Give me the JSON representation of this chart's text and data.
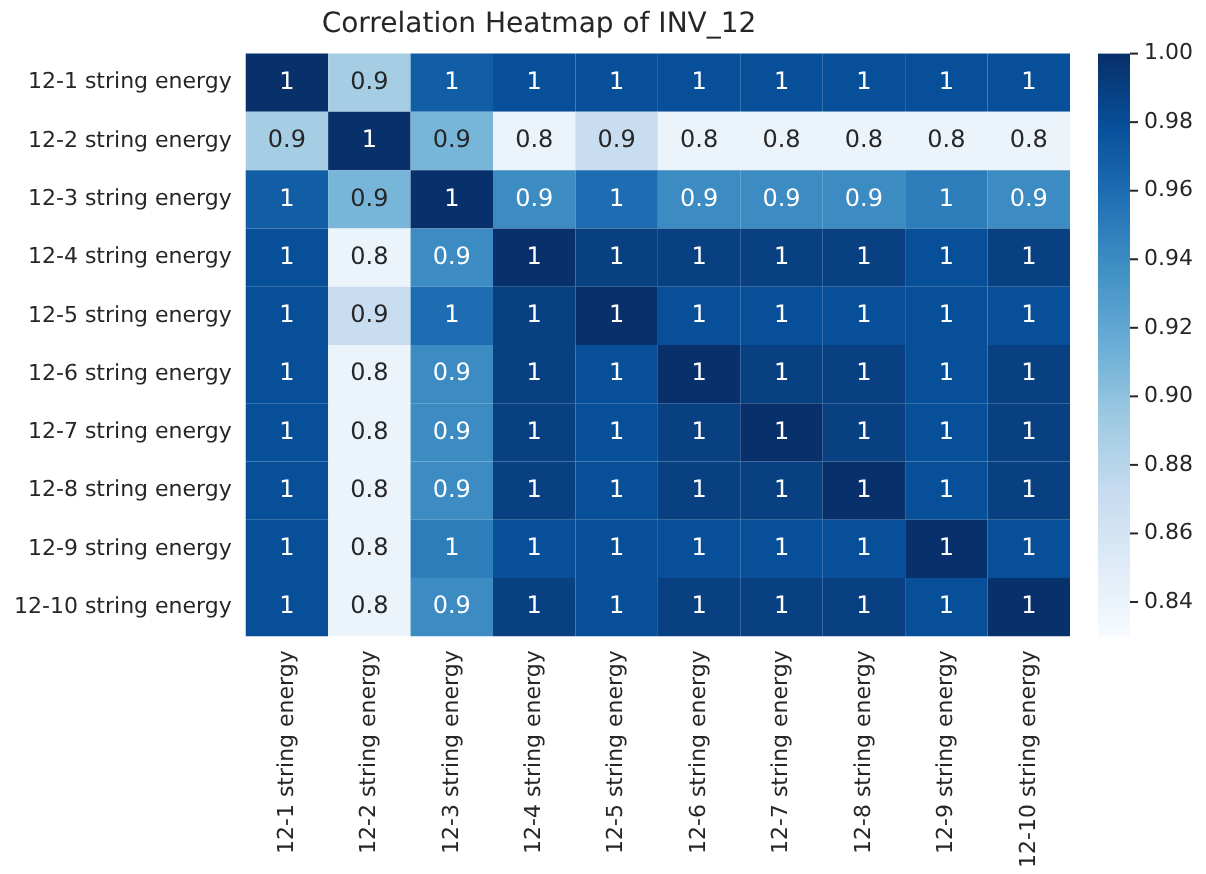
{
  "chart_data": {
    "type": "heatmap",
    "title": "Correlation Heatmap of INV_12",
    "categories": [
      "12-1 string energy",
      "12-2 string energy",
      "12-3 string energy",
      "12-4 string energy",
      "12-5 string energy",
      "12-6 string energy",
      "12-7 string energy",
      "12-8 string energy",
      "12-9 string energy",
      "12-10 string energy"
    ],
    "y_categories": [
      "12-1 string energy",
      "12-2 string energy",
      "12-3 string energy",
      "12-4 string energy",
      "12-5 string energy",
      "12-6 string energy",
      "12-7 string energy",
      "12-8 string energy",
      "12-9 string energy",
      "12-10 string energy"
    ],
    "cells": [
      [
        1.0,
        0.89,
        0.97,
        0.98,
        0.98,
        0.98,
        0.98,
        0.98,
        0.98,
        0.98
      ],
      [
        0.89,
        1.0,
        0.91,
        0.84,
        0.87,
        0.84,
        0.84,
        0.84,
        0.84,
        0.84
      ],
      [
        0.97,
        0.91,
        1.0,
        0.94,
        0.96,
        0.94,
        0.94,
        0.94,
        0.95,
        0.94
      ],
      [
        0.98,
        0.84,
        0.94,
        1.0,
        0.99,
        0.99,
        0.99,
        0.99,
        0.98,
        0.99
      ],
      [
        0.98,
        0.87,
        0.96,
        0.99,
        1.0,
        0.98,
        0.98,
        0.98,
        0.98,
        0.98
      ],
      [
        0.98,
        0.84,
        0.94,
        0.99,
        0.98,
        1.0,
        0.99,
        0.99,
        0.98,
        0.99
      ],
      [
        0.98,
        0.84,
        0.94,
        0.99,
        0.98,
        0.99,
        1.0,
        0.99,
        0.98,
        0.99
      ],
      [
        0.98,
        0.84,
        0.94,
        0.99,
        0.98,
        0.99,
        0.99,
        1.0,
        0.98,
        0.99
      ],
      [
        0.98,
        0.84,
        0.95,
        0.98,
        0.98,
        0.98,
        0.98,
        0.98,
        1.0,
        0.98
      ],
      [
        0.98,
        0.84,
        0.94,
        0.99,
        0.98,
        0.99,
        0.99,
        0.99,
        0.98,
        1.0
      ]
    ],
    "cell_labels": [
      [
        "1",
        "0.9",
        "1",
        "1",
        "1",
        "1",
        "1",
        "1",
        "1",
        "1"
      ],
      [
        "0.9",
        "1",
        "0.9",
        "0.8",
        "0.9",
        "0.8",
        "0.8",
        "0.8",
        "0.8",
        "0.8"
      ],
      [
        "1",
        "0.9",
        "1",
        "0.9",
        "1",
        "0.9",
        "0.9",
        "0.9",
        "1",
        "0.9"
      ],
      [
        "1",
        "0.8",
        "0.9",
        "1",
        "1",
        "1",
        "1",
        "1",
        "1",
        "1"
      ],
      [
        "1",
        "0.9",
        "1",
        "1",
        "1",
        "1",
        "1",
        "1",
        "1",
        "1"
      ],
      [
        "1",
        "0.8",
        "0.9",
        "1",
        "1",
        "1",
        "1",
        "1",
        "1",
        "1"
      ],
      [
        "1",
        "0.8",
        "0.9",
        "1",
        "1",
        "1",
        "1",
        "1",
        "1",
        "1"
      ],
      [
        "1",
        "0.8",
        "0.9",
        "1",
        "1",
        "1",
        "1",
        "1",
        "1",
        "1"
      ],
      [
        "1",
        "0.8",
        "1",
        "1",
        "1",
        "1",
        "1",
        "1",
        "1",
        "1"
      ],
      [
        "1",
        "0.8",
        "0.9",
        "1",
        "1",
        "1",
        "1",
        "1",
        "1",
        "1"
      ]
    ],
    "clim": [
      0.83,
      1.0
    ],
    "cticks": [
      0.84,
      0.86,
      0.88,
      {
        "value": 0.9,
        "label": "0.90"
      },
      0.92,
      0.94,
      0.96,
      0.98,
      {
        "value": 1.0,
        "label": "1.00"
      }
    ]
  }
}
